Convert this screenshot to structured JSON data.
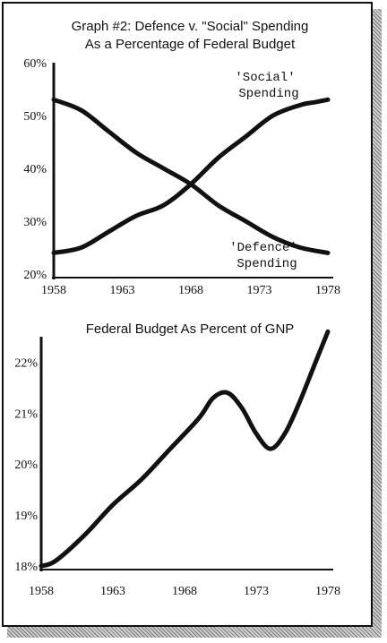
{
  "colors": {
    "ink": "#111111",
    "background": "#ffffff"
  },
  "chart_data": [
    {
      "type": "line",
      "title": "Graph #2: Defence v. \"Social\" Spending",
      "subtitle": "As a Percentage of Federal Budget",
      "xlabel": "",
      "ylabel": "",
      "xlim": [
        1958,
        1978
      ],
      "ylim": [
        20,
        60
      ],
      "x_ticks": [
        "1958",
        "1963",
        "1968",
        "1973",
        "1978"
      ],
      "y_ticks": [
        "60%",
        "50%",
        "40%",
        "30%",
        "20%"
      ],
      "y_tick_values": [
        60,
        50,
        40,
        30,
        20
      ],
      "series": [
        {
          "name": "'Social' Spending",
          "label_lines": [
            "'Social'",
            "Spending"
          ],
          "x": [
            1958,
            1960,
            1962,
            1964,
            1966,
            1968,
            1970,
            1972,
            1974,
            1976,
            1977,
            1978
          ],
          "values": [
            24,
            25,
            28,
            31,
            33,
            37,
            42,
            46,
            50,
            52,
            52.5,
            53
          ]
        },
        {
          "name": "'Defence' Spending",
          "label_lines": [
            "'Defence'",
            "Spending"
          ],
          "x": [
            1958,
            1960,
            1962,
            1964,
            1966,
            1968,
            1970,
            1972,
            1974,
            1976,
            1978
          ],
          "values": [
            53,
            51,
            47,
            43,
            40,
            37,
            33,
            30,
            27,
            25,
            24
          ]
        }
      ]
    },
    {
      "type": "line",
      "title": "Federal Budget As Percent of GNP",
      "xlabel": "",
      "ylabel": "",
      "xlim": [
        1958,
        1978
      ],
      "ylim": [
        18,
        22.5
      ],
      "x_ticks": [
        "1958",
        "1963",
        "1968",
        "1973",
        "1978"
      ],
      "y_ticks": [
        "22%",
        "21%",
        "20%",
        "19%",
        "18%"
      ],
      "y_tick_values": [
        22,
        21,
        20,
        19,
        18
      ],
      "series": [
        {
          "x": [
            1958,
            1959,
            1961,
            1963,
            1965,
            1967,
            1969,
            1970,
            1971,
            1972,
            1973,
            1974,
            1975,
            1976,
            1977,
            1978
          ],
          "values": [
            18,
            18.1,
            18.6,
            19.2,
            19.7,
            20.3,
            20.9,
            21.3,
            21.4,
            21.1,
            20.6,
            20.3,
            20.6,
            21.2,
            21.9,
            22.6
          ]
        }
      ]
    }
  ]
}
